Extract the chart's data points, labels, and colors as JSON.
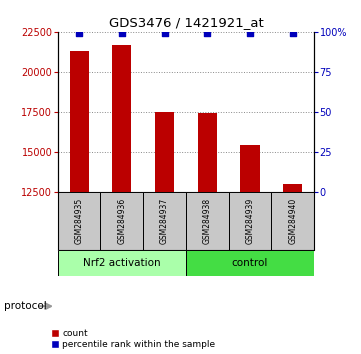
{
  "title": "GDS3476 / 1421921_at",
  "samples": [
    "GSM284935",
    "GSM284936",
    "GSM284937",
    "GSM284938",
    "GSM284939",
    "GSM284940"
  ],
  "counts": [
    21300,
    21700,
    17500,
    17400,
    15400,
    13000
  ],
  "percentile_ranks": [
    99,
    99,
    99,
    99,
    99,
    99
  ],
  "groups": [
    {
      "label": "Nrf2 activation",
      "start": 0,
      "end": 3,
      "color": "#aaffaa"
    },
    {
      "label": "control",
      "start": 3,
      "end": 6,
      "color": "#44dd44"
    }
  ],
  "ylim_left": [
    12500,
    22500
  ],
  "ylim_right": [
    0,
    100
  ],
  "yticks_left": [
    12500,
    15000,
    17500,
    20000,
    22500
  ],
  "yticks_right": [
    0,
    25,
    50,
    75,
    100
  ],
  "bar_color": "#bb0000",
  "point_color": "#0000bb",
  "background_color": "#ffffff",
  "protocol_label": "protocol",
  "legend_count_label": "count",
  "legend_percentile_label": "percentile rank within the sample",
  "sample_box_color": "#c8c8c8"
}
